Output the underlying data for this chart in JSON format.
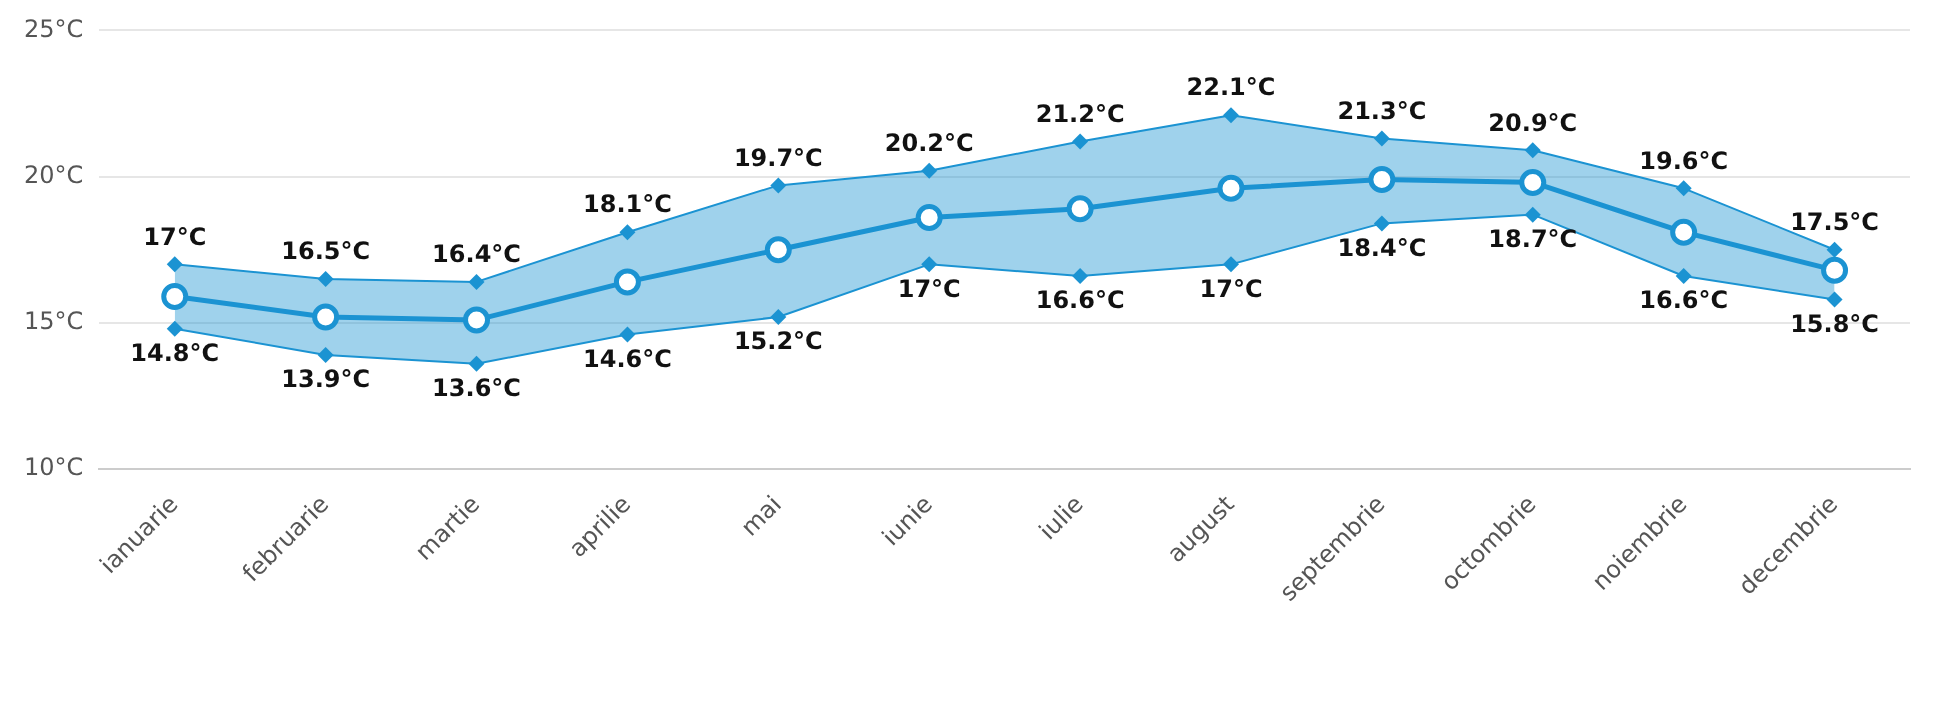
{
  "chart_data": {
    "type": "line",
    "categories": [
      "ianuarie",
      "februarie",
      "martie",
      "aprilie",
      "mai",
      "iunie",
      "iulie",
      "august",
      "septembrie",
      "octombrie",
      "noiembrie",
      "decembrie"
    ],
    "series": [
      {
        "color": "#1b93d2",
        "marker": "diamond",
        "values": [
          17,
          16.5,
          16.4,
          18.1,
          19.7,
          20.2,
          21.2,
          22.1,
          21.3,
          20.9,
          19.6,
          17.5
        ],
        "value_labels": [
          "17°C",
          "16.5°C",
          "16.4°C",
          "18.1°C",
          "19.7°C",
          "20.2°C",
          "21.2°C",
          "22.1°C",
          "21.3°C",
          "20.9°C",
          "19.6°C",
          "17.5°C"
        ]
      },
      {
        "color": "#1b93d2",
        "marker": "diamond",
        "values": [
          14.8,
          13.9,
          13.6,
          14.6,
          15.2,
          17,
          16.6,
          17,
          18.4,
          18.7,
          16.6,
          15.8
        ],
        "value_labels": [
          "14.8°C",
          "13.9°C",
          "13.6°C",
          "14.6°C",
          "15.2°C",
          "17°C",
          "16.6°C",
          "17°C",
          "18.4°C",
          "18.7°C",
          "16.6°C",
          "15.8°C"
        ]
      },
      {
        "color": "#1b93d2",
        "marker": "circle",
        "values": [
          15.9,
          15.2,
          15.1,
          16.4,
          17.5,
          18.6,
          18.9,
          19.6,
          19.9,
          19.8,
          18.1,
          16.8
        ]
      }
    ],
    "ylim": [
      10,
      25
    ],
    "yticks": [
      {
        "value": 10,
        "label": "10°C"
      },
      {
        "value": 15,
        "label": "15°C"
      },
      {
        "value": 20,
        "label": "20°C"
      },
      {
        "value": 25,
        "label": "25°C"
      }
    ],
    "grid": "y",
    "legend": false,
    "line_style": "solid"
  }
}
